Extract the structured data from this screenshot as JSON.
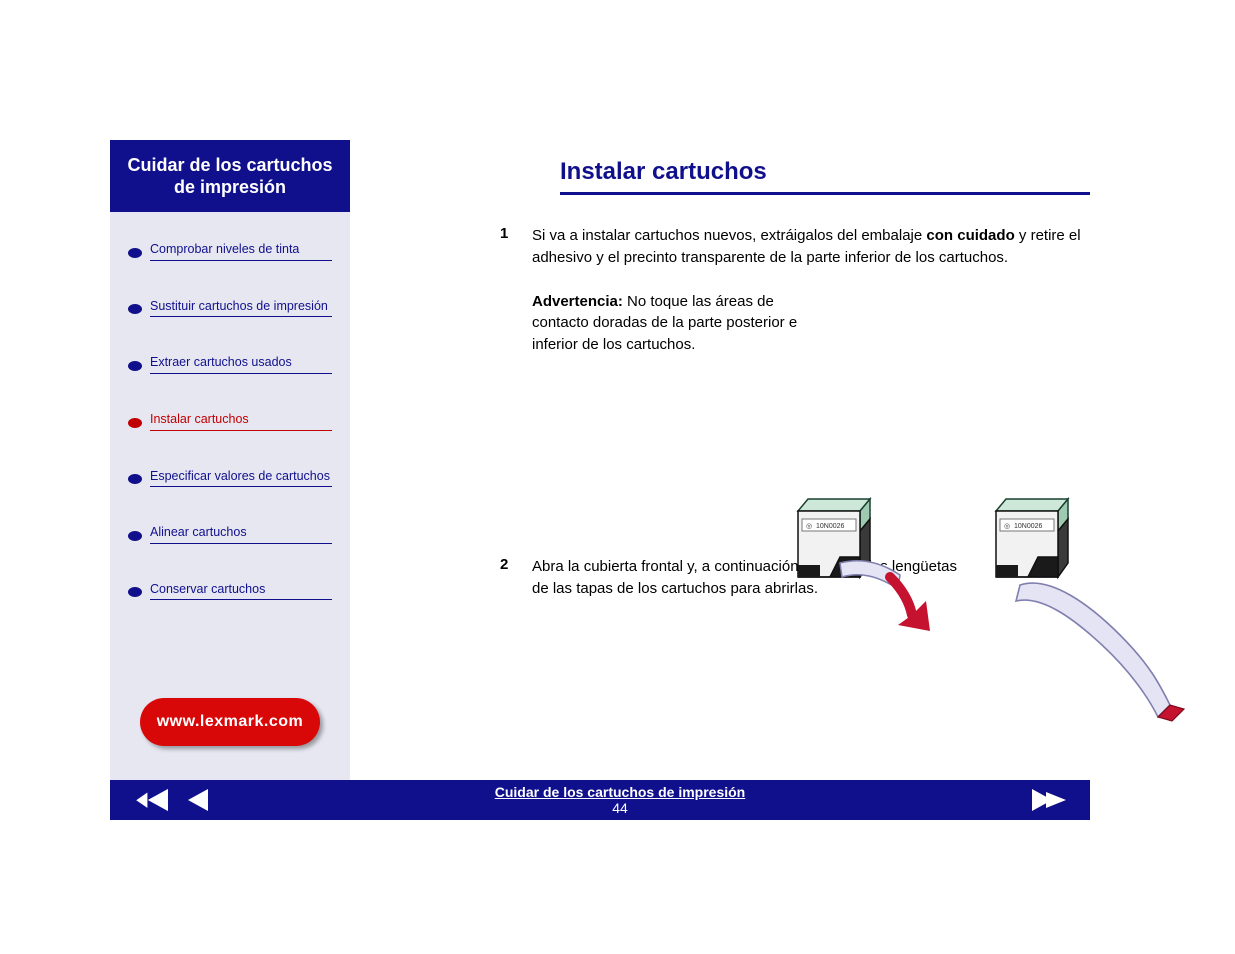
{
  "colors": {
    "brand_blue": "#10108c",
    "sidebar_bg": "#e7e7f2",
    "accent_red": "#d80808",
    "active_red": "#c00000",
    "text_black": "#000000",
    "white": "#ffffff",
    "cartridge_body_light": "#f2f2f2",
    "cartridge_body_dark": "#3a3a3a",
    "cartridge_top": "#cde8d8",
    "tape_fill": "#e4e4f4",
    "tape_edge": "#8080b0",
    "arrow_red": "#c4122f"
  },
  "sidebar": {
    "title": "Cuidar de los cartuchos de impresión",
    "items": [
      {
        "label": "Comprobar niveles de tinta",
        "active": false
      },
      {
        "label": "Sustituir cartuchos de impresión",
        "active": false
      },
      {
        "label": "Extraer cartuchos usados",
        "active": false
      },
      {
        "label": "Instalar cartuchos",
        "active": true
      },
      {
        "label": "Especificar valores de cartuchos",
        "active": false
      },
      {
        "label": "Alinear cartuchos",
        "active": false
      },
      {
        "label": "Conservar cartuchos",
        "active": false
      }
    ],
    "home_label": "www.lexmark.com"
  },
  "content": {
    "title": "Instalar cartuchos",
    "steps": [
      {
        "num": "1",
        "html": "Si va a instalar cartuchos nuevos, extráigalos del embalaje <b>con cuidado</b> y retire el adhesivo y el precinto transparente de la parte inferior de los cartuchos."
      },
      {
        "num": null,
        "warning_label": "Advertencia:",
        "warning_text": " No toque las áreas de contacto doradas de la parte posterior e inferior de los cartuchos."
      },
      {
        "num": "2",
        "html": "Abra la cubierta frontal y, a continuación, presione las lengüetas de las tapas de los cartuchos para abrirlas.",
        "indent": true
      }
    ]
  },
  "illustration": {
    "cartridge_label": "10N0026"
  },
  "footer": {
    "title": "Cuidar de los cartuchos de impresión",
    "page": "44"
  }
}
